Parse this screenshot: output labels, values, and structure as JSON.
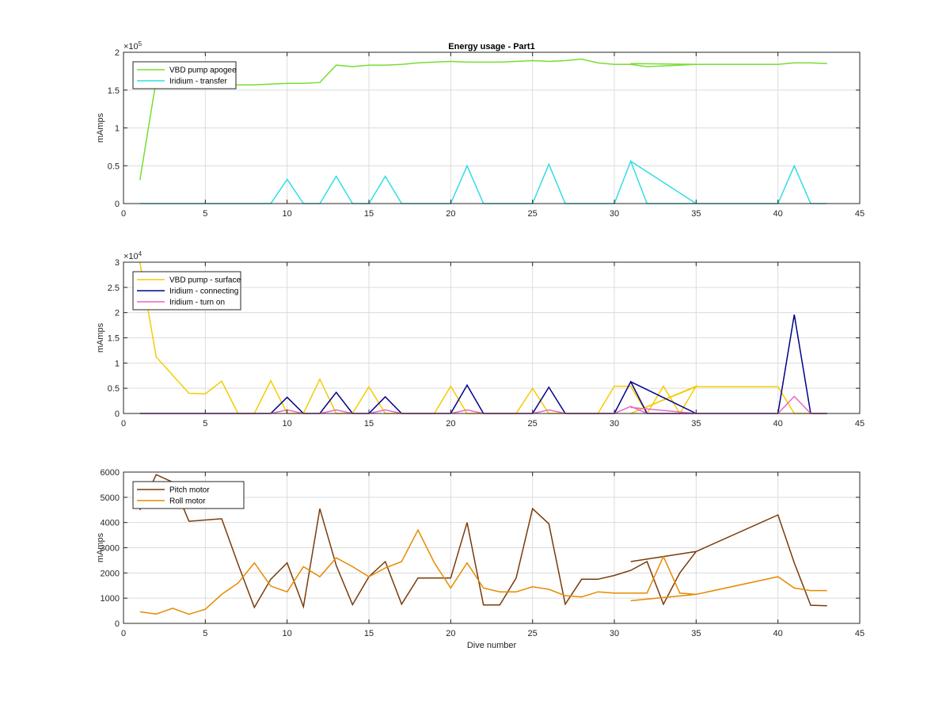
{
  "chart_data": [
    {
      "type": "line",
      "title": "Energy usage - Part1",
      "xlabel": "",
      "ylabel": "mAmps",
      "xlim": [
        0,
        45
      ],
      "ylim": [
        0,
        200000
      ],
      "exponent_label": "×10^5",
      "exponent_base": "×10",
      "exponent_power": "5",
      "xticks": [
        0,
        5,
        10,
        15,
        20,
        25,
        30,
        35,
        40,
        45
      ],
      "yticks": [
        0,
        50000,
        100000,
        150000,
        200000
      ],
      "ytick_labels": [
        "0",
        "0.5",
        "1",
        "1.5",
        "2"
      ],
      "grid": true,
      "legend_position": "top-left",
      "series": [
        {
          "name": "VBD pump apogee",
          "color": "#77dd33",
          "x": [
            1,
            2,
            3,
            4,
            5,
            6,
            7,
            8,
            9,
            10,
            11,
            12,
            13,
            14,
            15,
            16,
            17,
            18,
            19,
            20,
            21,
            22,
            23,
            24,
            25,
            26,
            27,
            28,
            29,
            30,
            31,
            32,
            33,
            34,
            35,
            31,
            35,
            40,
            41,
            42,
            43
          ],
          "y": [
            31000,
            163000,
            157000,
            157000,
            157000,
            157000,
            157000,
            157000,
            158000,
            159000,
            159000,
            160000,
            183000,
            181000,
            183000,
            183000,
            184000,
            186000,
            187000,
            188000,
            187000,
            187000,
            187000,
            188000,
            189000,
            188000,
            189000,
            191000,
            186000,
            184000,
            184000,
            181000,
            182000,
            183000,
            184000,
            185000,
            184000,
            184000,
            186000,
            186000,
            185000
          ]
        },
        {
          "name": "Iridium - transfer",
          "color": "#33dde6",
          "x": [
            1,
            2,
            3,
            4,
            5,
            6,
            7,
            8,
            9,
            10,
            11,
            12,
            13,
            14,
            15,
            16,
            17,
            18,
            19,
            20,
            21,
            22,
            23,
            24,
            25,
            26,
            27,
            28,
            29,
            30,
            31,
            32,
            33,
            34,
            35,
            31,
            35,
            40,
            41,
            42,
            43
          ],
          "y": [
            0,
            0,
            0,
            0,
            0,
            0,
            0,
            0,
            0,
            32000,
            0,
            0,
            36000,
            0,
            0,
            36000,
            0,
            0,
            0,
            0,
            50000,
            0,
            0,
            0,
            0,
            52000,
            0,
            0,
            0,
            0,
            56000,
            0,
            0,
            0,
            0,
            56000,
            0,
            0,
            50000,
            0,
            0
          ]
        }
      ]
    },
    {
      "type": "line",
      "title": "",
      "xlabel": "",
      "ylabel": "mAmps",
      "xlim": [
        0,
        45
      ],
      "ylim": [
        0,
        30000
      ],
      "exponent_label": "×10^4",
      "exponent_base": "×10",
      "exponent_power": "4",
      "xticks": [
        0,
        5,
        10,
        15,
        20,
        25,
        30,
        35,
        40,
        45
      ],
      "yticks": [
        0,
        5000,
        10000,
        15000,
        20000,
        25000,
        30000
      ],
      "ytick_labels": [
        "0",
        "0.5",
        "1",
        "1.5",
        "2",
        "2.5",
        "3"
      ],
      "grid": true,
      "legend_position": "top-left",
      "series": [
        {
          "name": "VBD pump - surface",
          "color": "#f5cc00",
          "x": [
            1,
            2,
            3,
            4,
            5,
            6,
            7,
            8,
            9,
            10,
            11,
            12,
            13,
            14,
            15,
            16,
            17,
            18,
            19,
            20,
            21,
            22,
            23,
            24,
            25,
            26,
            27,
            28,
            29,
            30,
            31,
            32,
            33,
            34,
            35,
            31,
            35,
            40,
            41,
            42,
            43
          ],
          "y": [
            30000,
            11200,
            7600,
            4000,
            3900,
            6400,
            0,
            0,
            6500,
            0,
            0,
            6800,
            0,
            0,
            5300,
            0,
            0,
            0,
            0,
            5400,
            0,
            0,
            0,
            0,
            5000,
            0,
            0,
            0,
            0,
            5400,
            5400,
            0,
            5400,
            0,
            5400,
            0,
            5300,
            5300,
            0,
            0,
            0
          ]
        },
        {
          "name": "Iridium - connecting",
          "color": "#00008b",
          "x": [
            1,
            2,
            3,
            4,
            5,
            6,
            7,
            8,
            9,
            10,
            11,
            12,
            13,
            14,
            15,
            16,
            17,
            18,
            19,
            20,
            21,
            22,
            23,
            24,
            25,
            26,
            27,
            28,
            29,
            30,
            31,
            32,
            33,
            34,
            35,
            31,
            35,
            40,
            41,
            42,
            43
          ],
          "y": [
            0,
            0,
            0,
            0,
            0,
            0,
            0,
            0,
            0,
            3200,
            0,
            0,
            4200,
            0,
            0,
            3300,
            0,
            0,
            0,
            0,
            5600,
            0,
            0,
            0,
            0,
            5200,
            0,
            0,
            0,
            0,
            6300,
            0,
            0,
            0,
            0,
            6300,
            0,
            0,
            19600,
            0,
            0
          ]
        },
        {
          "name": "Iridium - turn on",
          "color": "#e667c4",
          "x": [
            1,
            2,
            3,
            4,
            5,
            6,
            7,
            8,
            9,
            10,
            11,
            12,
            13,
            14,
            15,
            16,
            17,
            18,
            19,
            20,
            21,
            22,
            23,
            24,
            25,
            26,
            27,
            28,
            29,
            30,
            31,
            32,
            33,
            34,
            35,
            31,
            35,
            40,
            41,
            42,
            43
          ],
          "y": [
            0,
            0,
            0,
            0,
            0,
            0,
            0,
            0,
            0,
            700,
            0,
            0,
            700,
            0,
            0,
            700,
            0,
            0,
            0,
            0,
            700,
            0,
            0,
            0,
            0,
            700,
            0,
            0,
            0,
            0,
            1400,
            0,
            0,
            0,
            0,
            1200,
            0,
            0,
            3400,
            0,
            0
          ]
        }
      ]
    },
    {
      "type": "line",
      "title": "",
      "xlabel": "Dive number",
      "ylabel": "mAmps",
      "xlim": [
        0,
        45
      ],
      "ylim": [
        0,
        6000
      ],
      "exponent_label": "",
      "exponent_base": "",
      "exponent_power": "",
      "xticks": [
        0,
        5,
        10,
        15,
        20,
        25,
        30,
        35,
        40,
        45
      ],
      "yticks": [
        0,
        1000,
        2000,
        3000,
        4000,
        5000,
        6000
      ],
      "ytick_labels": [
        "0",
        "1000",
        "2000",
        "3000",
        "4000",
        "5000",
        "6000"
      ],
      "grid": true,
      "legend_position": "top-left",
      "series": [
        {
          "name": "Pitch motor",
          "color": "#7a3b0a",
          "x": [
            1,
            2,
            3,
            4,
            5,
            6,
            7,
            8,
            9,
            10,
            11,
            12,
            13,
            14,
            15,
            16,
            17,
            18,
            19,
            20,
            21,
            22,
            23,
            24,
            25,
            26,
            27,
            28,
            29,
            30,
            31,
            32,
            33,
            34,
            35,
            31,
            35,
            40,
            41,
            42,
            43
          ],
          "y": [
            4500,
            5900,
            5600,
            4050,
            4100,
            4150,
            2350,
            630,
            1750,
            2400,
            660,
            4550,
            2300,
            740,
            1850,
            2450,
            760,
            1800,
            1800,
            1800,
            4000,
            730,
            730,
            1800,
            4550,
            3950,
            760,
            1750,
            1750,
            1900,
            2100,
            2450,
            760,
            2000,
            2850,
            2450,
            2850,
            4300,
            2400,
            720,
            700
          ]
        },
        {
          "name": "Roll motor",
          "color": "#e68a00",
          "x": [
            1,
            2,
            3,
            4,
            5,
            6,
            7,
            8,
            9,
            10,
            11,
            12,
            13,
            14,
            15,
            16,
            17,
            18,
            19,
            20,
            21,
            22,
            23,
            24,
            25,
            26,
            27,
            28,
            29,
            30,
            31,
            32,
            33,
            34,
            35,
            31,
            35,
            40,
            41,
            42,
            43
          ],
          "y": [
            460,
            370,
            600,
            360,
            560,
            1150,
            1600,
            2400,
            1480,
            1250,
            2250,
            1850,
            2600,
            2250,
            1850,
            2200,
            2450,
            3700,
            2400,
            1400,
            2400,
            1400,
            1250,
            1250,
            1450,
            1350,
            1100,
            1050,
            1250,
            1200,
            1200,
            1200,
            2650,
            1200,
            1150,
            900,
            1150,
            1850,
            1400,
            1300,
            1300
          ]
        }
      ]
    }
  ]
}
